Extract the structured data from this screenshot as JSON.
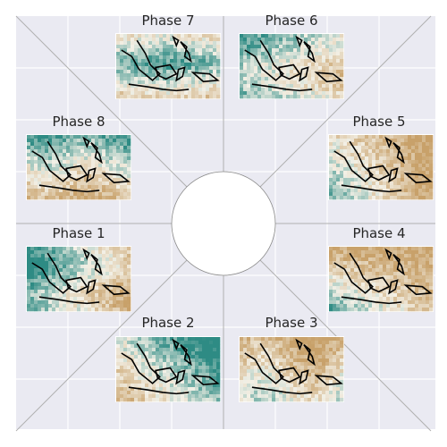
{
  "chart_data": {
    "type": "heatmap",
    "title": "",
    "xlabel": "",
    "ylabel": "",
    "grid": true,
    "colors": {
      "background": "#eaeaf2",
      "grid": "#ffffff",
      "axis": "#b0b0b0",
      "dry": "#c8a16a",
      "wet": "#2e8b84",
      "neutral": "#f3f0e6",
      "coast": "#000000"
    },
    "phases": [
      {
        "label": "Phase 1",
        "pattern": "wet-west-dry-east"
      },
      {
        "label": "Phase 2",
        "pattern": "wet-northeast-dry-west"
      },
      {
        "label": "Phase 3",
        "pattern": "dry-north-mixed-south"
      },
      {
        "label": "Phase 4",
        "pattern": "dry-north-wet-southwest"
      },
      {
        "label": "Phase 5",
        "pattern": "dry-east-wet-west"
      },
      {
        "label": "Phase 6",
        "pattern": "wet-west-mixed"
      },
      {
        "label": "Phase 7",
        "pattern": "wet-center-dry-edges"
      },
      {
        "label": "Phase 8",
        "pattern": "wet-north-dry-south"
      }
    ]
  }
}
